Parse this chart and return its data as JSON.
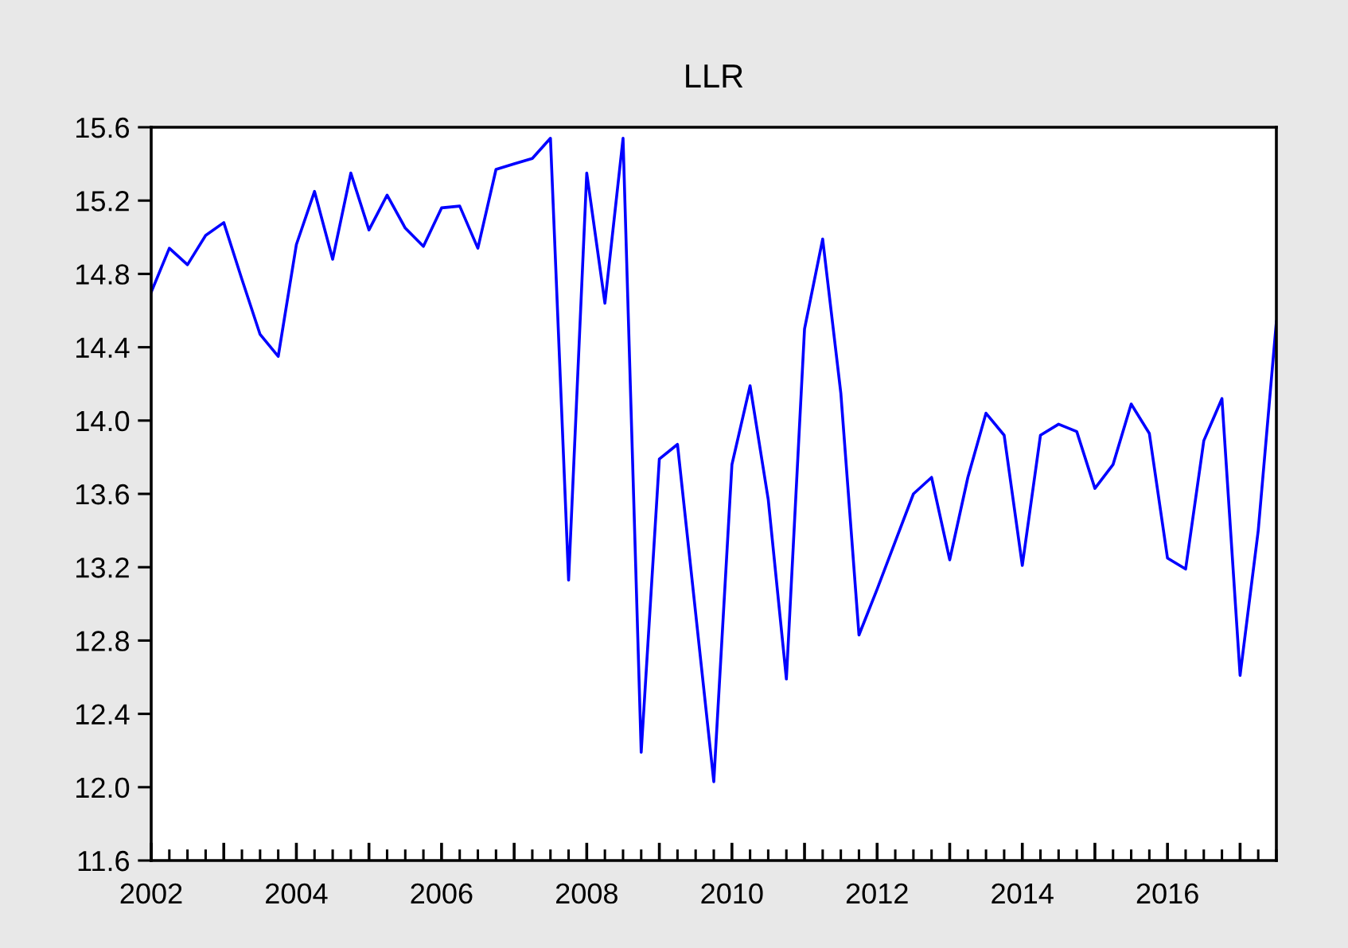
{
  "chart_data": {
    "type": "line",
    "title": "LLR",
    "x": [
      2002,
      2002.25,
      2002.5,
      2002.75,
      2003,
      2003.25,
      2003.5,
      2003.75,
      2004,
      2004.25,
      2004.5,
      2004.75,
      2005,
      2005.25,
      2005.5,
      2005.75,
      2006,
      2006.25,
      2006.5,
      2006.75,
      2007,
      2007.25,
      2007.5,
      2007.75,
      2008,
      2008.25,
      2008.5,
      2008.75,
      2009,
      2009.25,
      2009.5,
      2009.75,
      2010,
      2010.25,
      2010.5,
      2010.75,
      2011,
      2011.25,
      2011.5,
      2011.75,
      2012,
      2012.25,
      2012.5,
      2012.75,
      2013,
      2013.25,
      2013.5,
      2013.75,
      2014,
      2014.25,
      2014.5,
      2014.75,
      2015,
      2015.25,
      2015.5,
      2015.75,
      2016,
      2016.25,
      2016.5,
      2016.75,
      2017,
      2017.25,
      2017.5
    ],
    "series": [
      {
        "color": "#0000ff",
        "values": [
          14.7,
          14.94,
          14.85,
          15.01,
          15.08,
          14.77,
          14.47,
          14.35,
          14.96,
          15.25,
          14.88,
          15.35,
          15.04,
          15.23,
          15.05,
          14.95,
          15.16,
          15.17,
          14.94,
          15.37,
          15.4,
          15.43,
          15.54,
          13.13,
          15.35,
          14.64,
          15.54,
          12.19,
          13.79,
          13.87,
          12.95,
          12.03,
          13.76,
          14.19,
          13.57,
          12.59,
          14.5,
          14.99,
          14.15,
          12.83,
          13.08,
          13.34,
          13.6,
          13.69,
          13.24,
          13.69,
          14.04,
          13.92,
          13.21,
          13.92,
          13.98,
          13.94,
          13.63,
          13.76,
          14.09,
          13.93,
          13.25,
          13.19,
          13.89,
          14.12,
          12.61,
          13.4,
          14.54
        ]
      }
    ],
    "xlim": [
      2002,
      2017.5
    ],
    "xticks": [
      {
        "value": 2002,
        "label": "2002"
      },
      {
        "value": 2003,
        "label": null
      },
      {
        "value": 2004,
        "label": "2004"
      },
      {
        "value": 2005,
        "label": null
      },
      {
        "value": 2006,
        "label": "2006"
      },
      {
        "value": 2007,
        "label": null
      },
      {
        "value": 2008,
        "label": "2008"
      },
      {
        "value": 2009,
        "label": null
      },
      {
        "value": 2010,
        "label": "2010"
      },
      {
        "value": 2011,
        "label": null
      },
      {
        "value": 2012,
        "label": "2012"
      },
      {
        "value": 2013,
        "label": null
      },
      {
        "value": 2014,
        "label": "2014"
      },
      {
        "value": 2015,
        "label": null
      },
      {
        "value": 2016,
        "label": "2016"
      },
      {
        "value": 2017,
        "label": null
      }
    ],
    "ylim": [
      11.6,
      15.6
    ],
    "yticks": [
      {
        "value": 11.6,
        "label": "11.6"
      },
      {
        "value": 12.0,
        "label": "12.0"
      },
      {
        "value": 12.4,
        "label": "12.4"
      },
      {
        "value": 12.8,
        "label": "12.8"
      },
      {
        "value": 13.2,
        "label": "13.2"
      },
      {
        "value": 13.6,
        "label": "13.6"
      },
      {
        "value": 14.0,
        "label": "14.0"
      },
      {
        "value": 14.4,
        "label": "14.4"
      },
      {
        "value": 14.8,
        "label": "14.8"
      },
      {
        "value": 15.2,
        "label": "15.2"
      },
      {
        "value": 15.6,
        "label": "15.6"
      }
    ],
    "marker": "none",
    "line_style": "solid"
  }
}
